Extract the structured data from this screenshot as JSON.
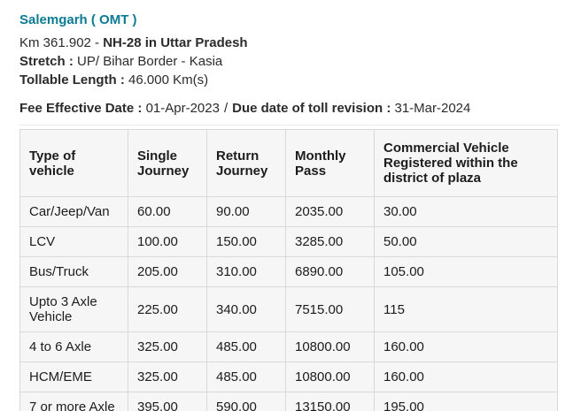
{
  "page": {
    "title": "Salemgarh ( OMT )",
    "location": {
      "prefix": "Km 361.902 - ",
      "highlight": "NH-28 in Uttar Pradesh"
    },
    "stretch": {
      "label": "Stretch : ",
      "value": "UP/ Bihar Border - Kasia"
    },
    "tollable": {
      "label": "Tollable Length : ",
      "value": "46.000 Km(s)"
    },
    "fee": {
      "effective_label": "Fee Effective Date : ",
      "effective_value": "01-Apr-2023",
      "separator": "/",
      "due_label": "Due date of toll revision : ",
      "due_value": "31-Mar-2024"
    }
  },
  "table": {
    "columns": [
      "Type of vehicle",
      "Single Journey",
      "Return Journey",
      "Monthly Pass",
      "Commercial Vehicle Registered within the district of plaza"
    ],
    "rows": [
      [
        "Car/Jeep/Van",
        "60.00",
        "90.00",
        "2035.00",
        "30.00"
      ],
      [
        "LCV",
        "100.00",
        "150.00",
        "3285.00",
        "50.00"
      ],
      [
        "Bus/Truck",
        "205.00",
        "310.00",
        "6890.00",
        "105.00"
      ],
      [
        "Upto 3 Axle Vehicle",
        "225.00",
        "340.00",
        "7515.00",
        "115"
      ],
      [
        "4 to 6 Axle",
        "325.00",
        "485.00",
        "10800.00",
        "160.00"
      ],
      [
        "HCM/EME",
        "325.00",
        "485.00",
        "10800.00",
        "160.00"
      ],
      [
        "7 or more Axle",
        "395.00",
        "590.00",
        "13150.00",
        "195.00"
      ]
    ]
  },
  "colors": {
    "title_accent": "#0c7b93",
    "table_background": "#f6f6f6",
    "table_border": "#d9d9d9"
  }
}
